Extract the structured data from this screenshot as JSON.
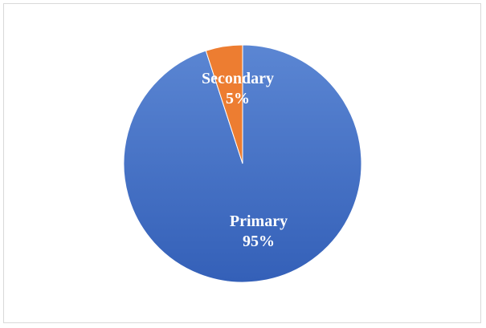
{
  "chart_data": {
    "type": "pie",
    "slices": [
      {
        "label": "Primary",
        "value": 95,
        "value_label": "95%",
        "color": "#4472c4"
      },
      {
        "label": "Secondary",
        "value": 5,
        "value_label": "5%",
        "color": "#ed7d31"
      }
    ],
    "title": "",
    "legend": "none"
  }
}
